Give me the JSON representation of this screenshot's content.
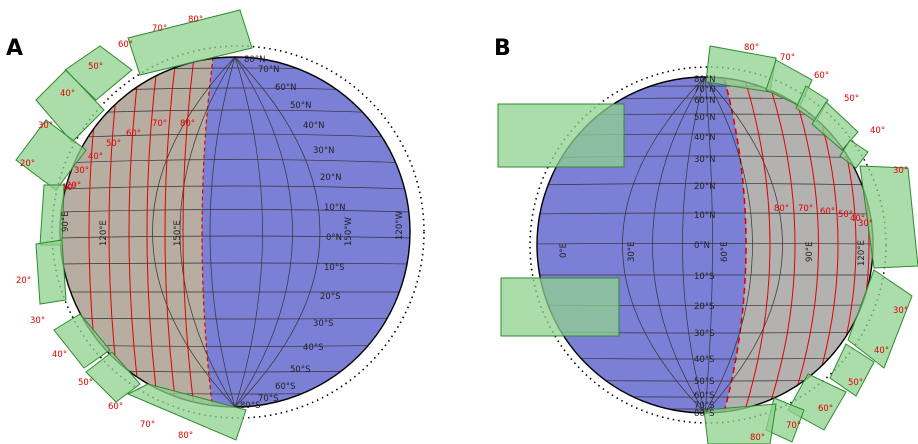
{
  "panels": [
    {
      "letter": "A",
      "lat_labels_n": [
        "80°N",
        "70°N",
        "60°N",
        "50°N",
        "40°N",
        "30°N",
        "20°N",
        "10°N",
        "0°N"
      ],
      "lat_labels_s": [
        "10°S",
        "20°S",
        "30°S",
        "40°S",
        "50°S",
        "60°S",
        "70°S",
        "80°S"
      ],
      "lon_labels": [
        "90°E",
        "120°E",
        "150°E",
        "150°W",
        "120°W"
      ],
      "outer_ring_labels": [
        "80°",
        "70°",
        "60°",
        "50°",
        "40°",
        "30°",
        "20°",
        "10°",
        "20°",
        "30°",
        "40°",
        "50°",
        "60°",
        "70°",
        "80°"
      ],
      "inner_red_labels": [
        "80°",
        "70°",
        "60°",
        "50°",
        "40°",
        "30°",
        "20°"
      ]
    },
    {
      "letter": "B",
      "lat_labels_n": [
        "80°N",
        "70°N",
        "60°N",
        "50°N",
        "40°N",
        "30°N",
        "20°N",
        "10°N",
        "0°N"
      ],
      "lat_labels_s": [
        "10°S",
        "20°S",
        "30°S",
        "40°S",
        "50°S",
        "60°S",
        "70°S",
        "80°S"
      ],
      "lon_labels": [
        "0°E",
        "30°E",
        "60°E",
        "90°E",
        "120°E"
      ],
      "outer_ring_labels": [
        "80°",
        "70°",
        "60°",
        "50°",
        "40°",
        "30°",
        "40°",
        "50°",
        "60°",
        "70°",
        "80°"
      ],
      "inner_red_labels": [
        "80°",
        "70°",
        "60°",
        "50°",
        "40°",
        "30°"
      ]
    }
  ],
  "colors": {
    "night_side": "#7b7fd6",
    "day_side": "#b7ada0",
    "footprint": "#8fd18f",
    "red_lines": "#e00000"
  }
}
